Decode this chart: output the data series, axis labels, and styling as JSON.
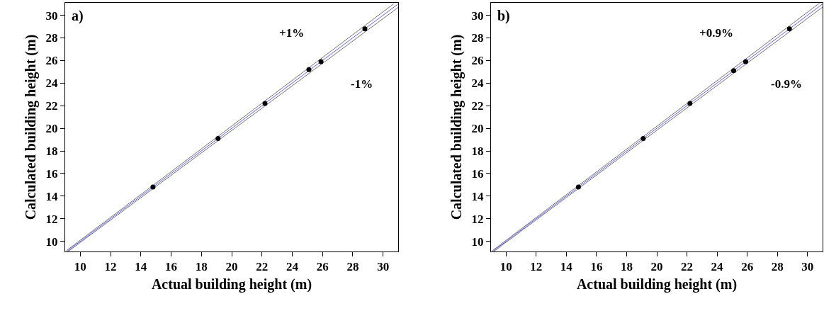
{
  "chart_data": [
    {
      "type": "scatter",
      "xlabel": "Actual building height (m)",
      "ylabel": "Calculated building height (m)",
      "xlim": [
        9,
        31
      ],
      "ylim": [
        9.1,
        31.1
      ],
      "xticks": [
        10,
        12,
        14,
        16,
        18,
        20,
        22,
        24,
        26,
        28,
        30
      ],
      "yticks": [
        10,
        12,
        14,
        16,
        18,
        20,
        22,
        24,
        26,
        28,
        30
      ],
      "grid": false,
      "marker": "circle",
      "series": [
        {
          "type": "line",
          "color": "#6060ff",
          "marker": "none",
          "x": [
            9.1,
            31
          ],
          "values": [
            9.1,
            31
          ]
        },
        {
          "type": "line",
          "color": "#707070",
          "marker": "none",
          "x": [
            9.1,
            30.7
          ],
          "values": [
            9.19,
            31.01
          ]
        },
        {
          "type": "line",
          "color": "#707070",
          "marker": "none",
          "x": [
            9.2,
            31
          ],
          "values": [
            9.11,
            30.69
          ]
        },
        {
          "type": "scatter",
          "color": "#000000",
          "x": [
            14.8,
            19.1,
            22.2,
            25.1,
            25.9,
            28.8
          ],
          "values": [
            14.8,
            19.1,
            22.2,
            25.2,
            25.9,
            28.8
          ]
        }
      ],
      "annotations": [
        "a)",
        "+1%",
        "-1%"
      ]
    },
    {
      "type": "scatter",
      "xlabel": "Actual building height (m)",
      "ylabel": "Calculated building height (m)",
      "xlim": [
        9,
        31
      ],
      "ylim": [
        9.1,
        31.1
      ],
      "xticks": [
        10,
        12,
        14,
        16,
        18,
        20,
        22,
        24,
        26,
        28,
        30
      ],
      "yticks": [
        10,
        12,
        14,
        16,
        18,
        20,
        22,
        24,
        26,
        28,
        30
      ],
      "grid": false,
      "marker": "circle",
      "series": [
        {
          "type": "line",
          "color": "#6060ff",
          "marker": "none",
          "x": [
            9.1,
            31
          ],
          "values": [
            9.1,
            31
          ]
        },
        {
          "type": "line",
          "color": "#707070",
          "marker": "none",
          "x": [
            9.1,
            30.8
          ],
          "values": [
            9.18,
            31.08
          ]
        },
        {
          "type": "line",
          "color": "#707070",
          "marker": "none",
          "x": [
            9.2,
            31
          ],
          "values": [
            9.12,
            30.72
          ]
        },
        {
          "type": "scatter",
          "color": "#000000",
          "x": [
            14.8,
            19.1,
            22.2,
            25.1,
            25.9,
            28.8
          ],
          "values": [
            14.8,
            19.1,
            22.2,
            25.1,
            25.9,
            28.8
          ]
        }
      ],
      "annotations": [
        "b)",
        "+0.9%",
        "-0.9%"
      ]
    }
  ]
}
